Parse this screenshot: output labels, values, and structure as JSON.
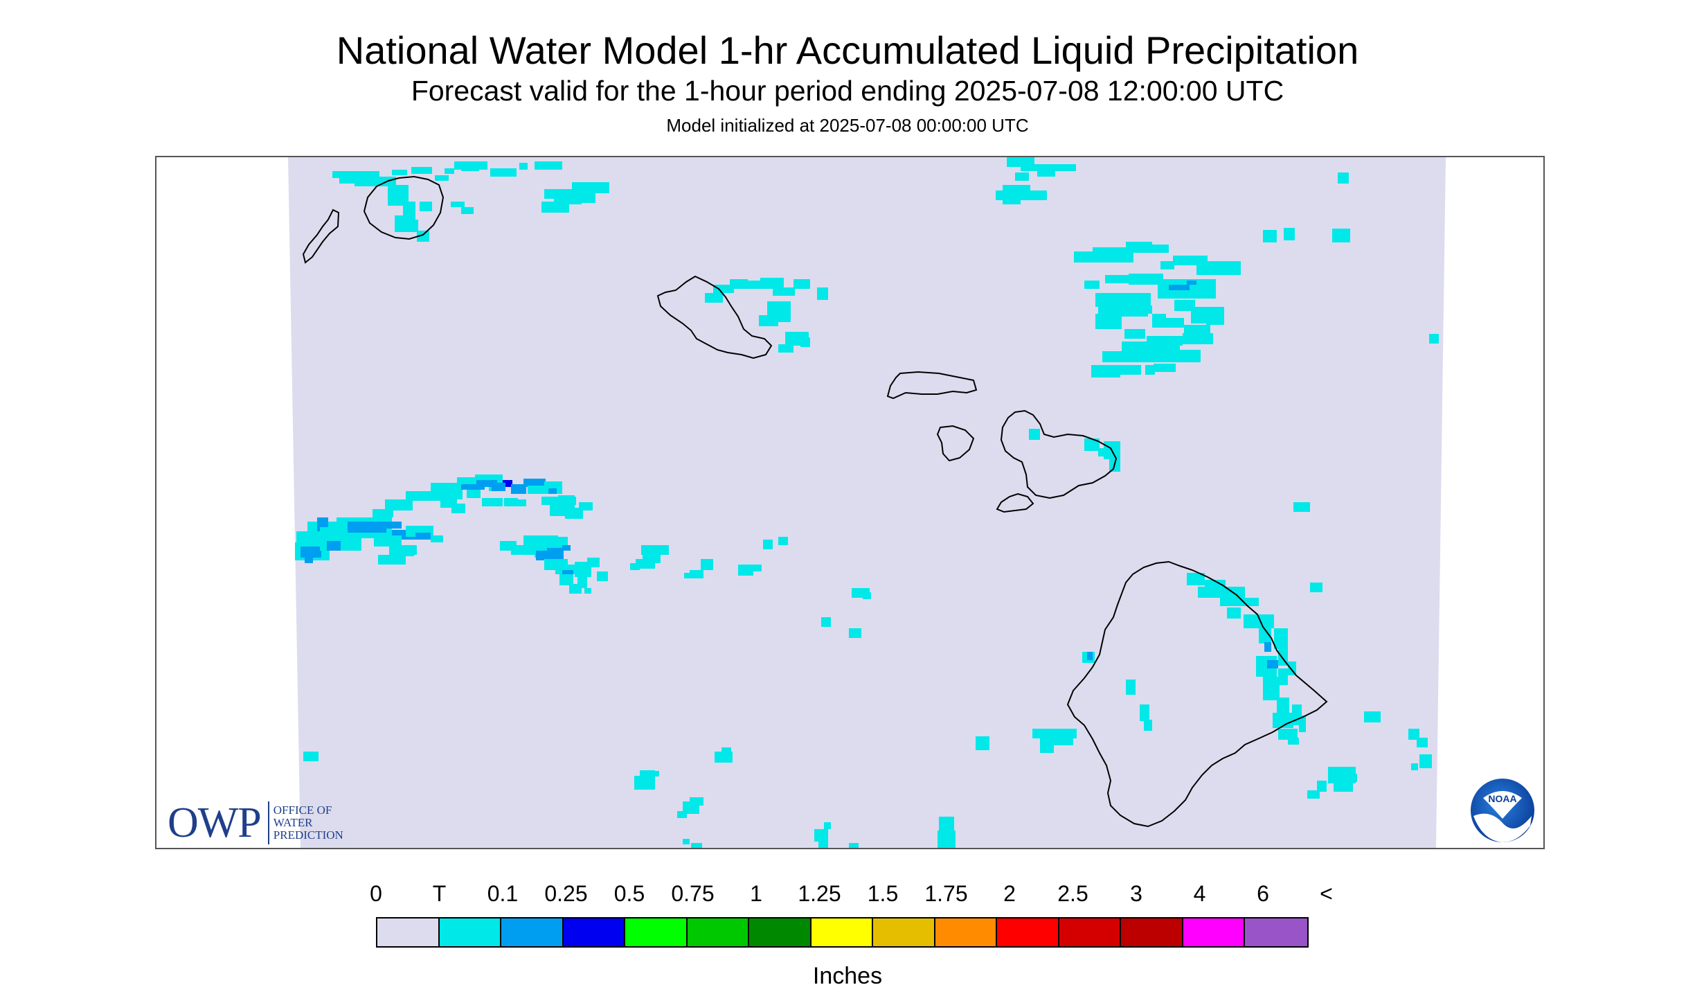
{
  "header": {
    "title": "National Water Model 1-hr Accumulated Liquid Precipitation",
    "subtitle": "Forecast valid for the 1-hour period ending 2025-07-08 12:00:00 UTC",
    "init_line": "Model initialized at 2025-07-08 00:00:00 UTC"
  },
  "map": {
    "background_color": "#dcdcee",
    "outside_color": "#ffffff",
    "coastline_color": "#000000",
    "islands": [
      "Niihau",
      "Kauai",
      "Oahu",
      "Molokai",
      "Lanai",
      "Maui",
      "Kahoolawe",
      "Hawaii"
    ]
  },
  "logos": {
    "owp_mark": "OWP",
    "owp_text": [
      "OFFICE OF",
      "WATER",
      "PREDICTION"
    ],
    "noaa_text": "NOAA"
  },
  "legend": {
    "labels": [
      "0",
      "T",
      "0.1",
      "0.25",
      "0.5",
      "0.75",
      "1",
      "1.25",
      "1.5",
      "1.75",
      "2",
      "2.5",
      "3",
      "4",
      "6",
      "<"
    ],
    "colors": [
      "#dcdcee",
      "#00e8e8",
      "#009ef0",
      "#0000f0",
      "#00ff00",
      "#00c800",
      "#008800",
      "#ffff00",
      "#e6be00",
      "#ff8c00",
      "#ff0000",
      "#d40000",
      "#bc0000",
      "#ff00ff",
      "#9955c8"
    ],
    "units": "Inches"
  }
}
